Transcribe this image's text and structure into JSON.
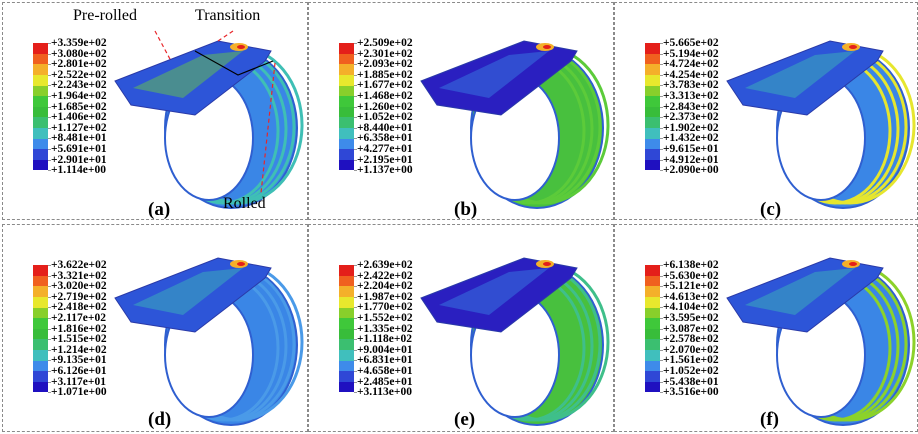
{
  "panels": [
    {
      "label": "(a)",
      "cyl": "#3a86e6",
      "stripe": "#3fbfb5",
      "sheet": "#2d55d8",
      "hot": "#6fd23a",
      "legend": [
        "+3.359e+02",
        "+3.080e+02",
        "+2.801e+02",
        "+2.522e+02",
        "+2.243e+02",
        "+1.964e+02",
        "+1.685e+02",
        "+1.406e+02",
        "+1.127e+02",
        "+8.481e+01",
        "+5.691e+01",
        "+2.901e+01",
        "+1.114e+00"
      ]
    },
    {
      "label": "(b)",
      "cyl": "#48c03e",
      "stripe": "#5ccb3a",
      "sheet": "#2a1fc0",
      "hot": "#3a86e6",
      "legend": [
        "+2.509e+02",
        "+2.301e+02",
        "+2.093e+02",
        "+1.885e+02",
        "+1.677e+02",
        "+1.468e+02",
        "+1.260e+02",
        "+1.052e+02",
        "+8.440e+01",
        "+6.358e+01",
        "+4.277e+01",
        "+2.195e+01",
        "+1.137e+00"
      ]
    },
    {
      "label": "(c)",
      "cyl": "#3a86e6",
      "stripe": "#e6e62e",
      "sheet": "#2d55d8",
      "hot": "#3fbfb5",
      "legend": [
        "+5.665e+02",
        "+5.194e+02",
        "+4.724e+02",
        "+4.254e+02",
        "+3.783e+02",
        "+3.313e+02",
        "+2.843e+02",
        "+2.373e+02",
        "+1.902e+02",
        "+1.432e+02",
        "+9.615e+01",
        "+4.912e+01",
        "+2.090e+00"
      ]
    },
    {
      "label": "(d)",
      "cyl": "#3a86e6",
      "stripe": "#4a9ae8",
      "sheet": "#2d55d8",
      "hot": "#3fbfb5",
      "legend": [
        "+3.622e+02",
        "+3.321e+02",
        "+3.020e+02",
        "+2.719e+02",
        "+2.418e+02",
        "+2.117e+02",
        "+1.816e+02",
        "+1.515e+02",
        "+1.214e+02",
        "+9.135e+01",
        "+6.126e+01",
        "+3.117e+01",
        "+1.071e+00"
      ]
    },
    {
      "label": "(e)",
      "cyl": "#48c03e",
      "stripe": "#3fbf8a",
      "sheet": "#2a1fc0",
      "hot": "#3a86e6",
      "legend": [
        "+2.639e+02",
        "+2.422e+02",
        "+2.204e+02",
        "+1.987e+02",
        "+1.770e+02",
        "+1.552e+02",
        "+1.335e+02",
        "+1.118e+02",
        "+9.004e+01",
        "+6.831e+01",
        "+4.658e+01",
        "+2.485e+01",
        "+3.113e+00"
      ]
    },
    {
      "label": "(f)",
      "cyl": "#3a86e6",
      "stripe": "#8cd22a",
      "sheet": "#2d55d8",
      "hot": "#3fbfb5",
      "legend": [
        "+6.138e+02",
        "+5.630e+02",
        "+5.121e+02",
        "+4.613e+02",
        "+4.104e+02",
        "+3.595e+02",
        "+3.087e+02",
        "+2.578e+02",
        "+2.070e+02",
        "+1.561e+02",
        "+1.052e+02",
        "+5.438e+01",
        "+3.516e+00"
      ]
    }
  ],
  "annotations": {
    "pre_rolled": "Pre-rolled",
    "transition": "Transition",
    "rolled": "Rolled"
  },
  "legend_colors": [
    "#e41f1a",
    "#f0601f",
    "#f4b02a",
    "#e8e82d",
    "#88cf2b",
    "#3fc83a",
    "#38bd3a",
    "#3bbf70",
    "#40bfbd",
    "#3e8bea",
    "#2f47d6",
    "#1f10c0"
  ]
}
